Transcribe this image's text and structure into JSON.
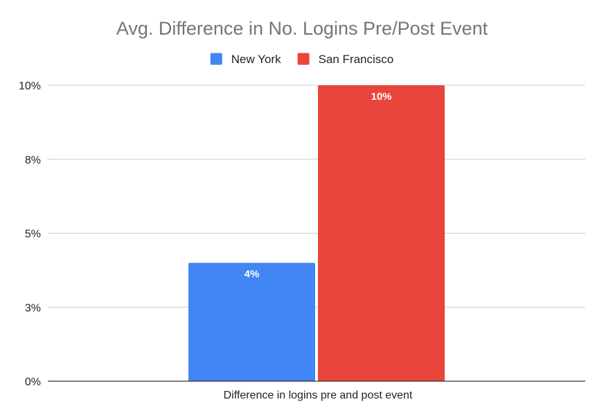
{
  "chart_data": {
    "type": "bar",
    "title": "Avg. Difference in No. Logins Pre/Post Event",
    "xlabel": "",
    "ylabel": "",
    "categories": [
      "Difference in logins pre and post event"
    ],
    "series": [
      {
        "name": "New York",
        "values": [
          4
        ],
        "data_labels": [
          "4%"
        ],
        "color": "#4285f4"
      },
      {
        "name": "San Francisco",
        "values": [
          10
        ],
        "data_labels": [
          "10%"
        ],
        "color": "#e8453c"
      }
    ],
    "ylim": [
      0,
      10
    ],
    "y_ticks": [
      {
        "value": 0,
        "label": "0%"
      },
      {
        "value": 2.5,
        "label": "3%"
      },
      {
        "value": 5,
        "label": "5%"
      },
      {
        "value": 7.5,
        "label": "8%"
      },
      {
        "value": 10,
        "label": "10%"
      }
    ],
    "grid": true,
    "legend_position": "top"
  }
}
